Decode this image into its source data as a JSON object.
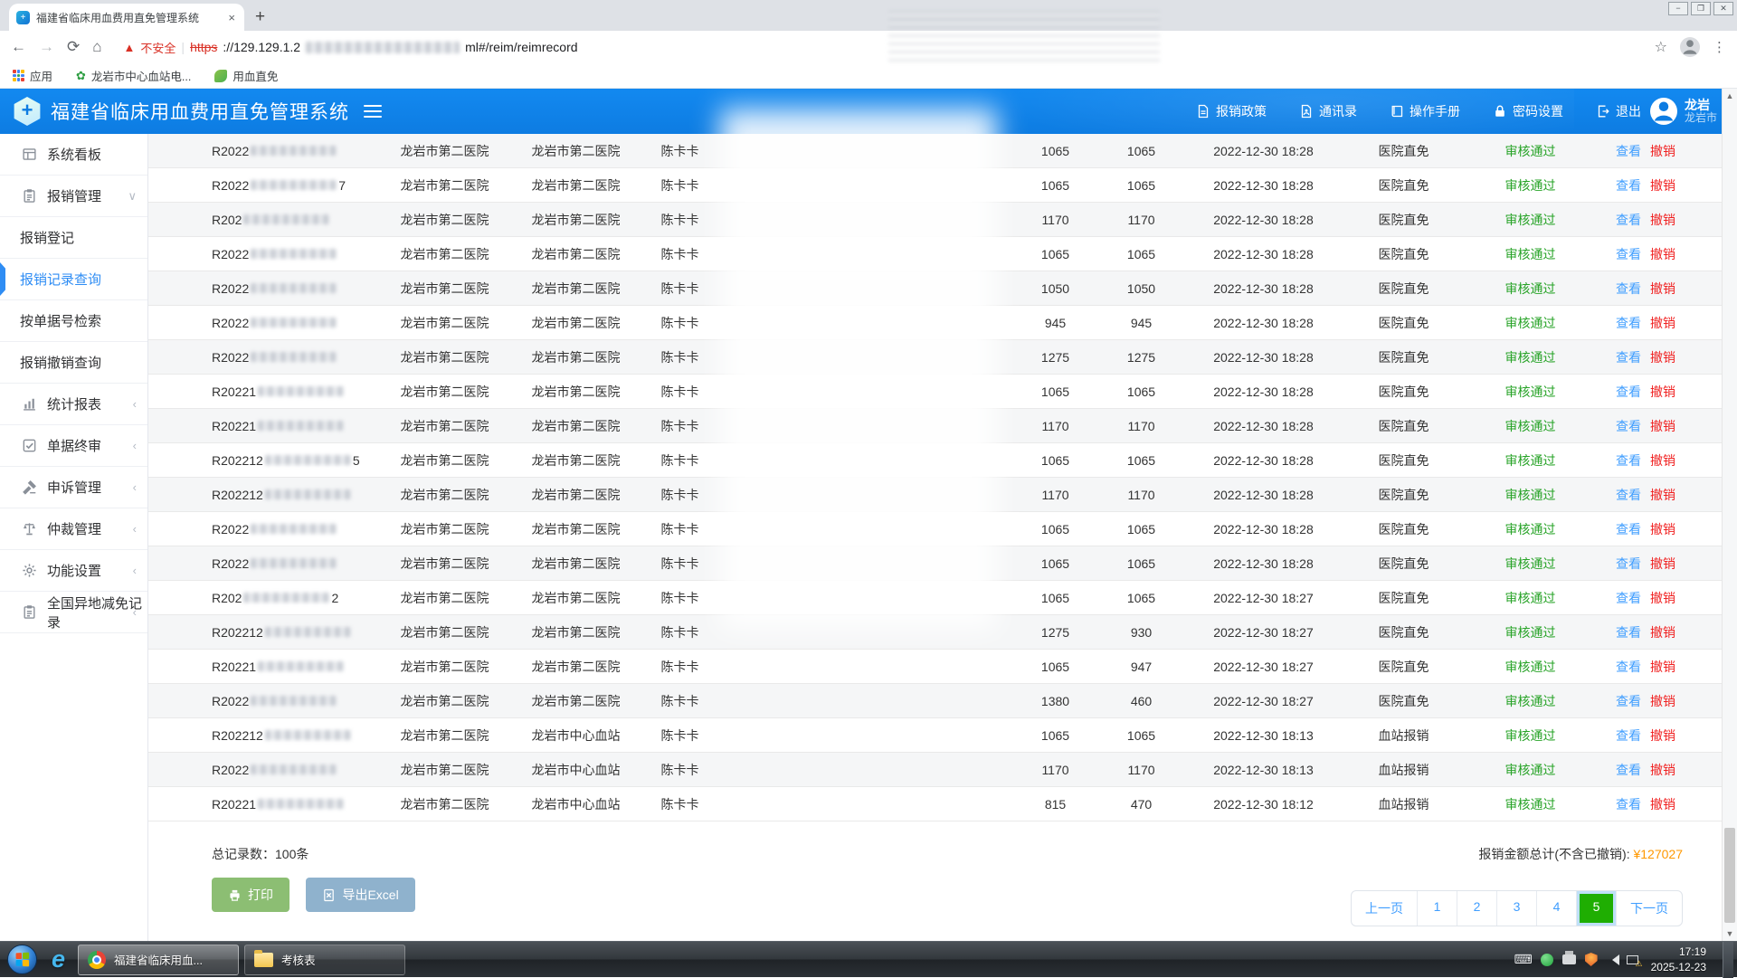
{
  "browser": {
    "tab_title": "福建省临床用血费用直免管理系统",
    "tab_close": "×",
    "new_tab": "+",
    "win_controls": [
      "−",
      "❐",
      "✕"
    ],
    "nav": {
      "back": "←",
      "forward": "→",
      "reload": "⟳",
      "home": "⌂"
    },
    "not_secure": "不安全",
    "url_scheme": "https",
    "url_host": "://129.129.1.2",
    "url_tail": "ml#/reim/reimrecord",
    "bookmarks": [
      {
        "key": "apps",
        "label": "应用"
      },
      {
        "key": "blood-center-site",
        "label": "龙岩市中心血站电..."
      },
      {
        "key": "blood-exempt",
        "label": "用血直免"
      }
    ]
  },
  "header": {
    "title": "福建省临床用血费用直免管理系统",
    "menu": [
      {
        "key": "reimburse-policy",
        "icon": "doc",
        "label": "报销政策"
      },
      {
        "key": "contacts",
        "icon": "contacts",
        "label": "通讯录"
      },
      {
        "key": "manual",
        "icon": "book",
        "label": "操作手册"
      },
      {
        "key": "password-settings",
        "icon": "lock",
        "label": "密码设置"
      },
      {
        "key": "logout",
        "icon": "logout",
        "label": "退出"
      }
    ],
    "user": {
      "name": "龙岩",
      "org": "龙岩市"
    }
  },
  "sidebar": {
    "items": [
      {
        "key": "dashboard",
        "type": "group",
        "icon": "dashboard",
        "label": "系统看板"
      },
      {
        "key": "reimburse-mgmt",
        "type": "group",
        "icon": "clipboard",
        "label": "报销管理",
        "chevron": "down"
      },
      {
        "key": "reimburse-register",
        "type": "sub",
        "label": "报销登记"
      },
      {
        "key": "reimburse-records",
        "type": "sub",
        "label": "报销记录查询",
        "active": true
      },
      {
        "key": "search-by-doc-no",
        "type": "sub",
        "label": "按单据号检索"
      },
      {
        "key": "reimburse-cancel-query",
        "type": "sub",
        "label": "报销撤销查询"
      },
      {
        "key": "stats-report",
        "type": "group",
        "icon": "chart",
        "label": "统计报表",
        "chevron": "left"
      },
      {
        "key": "doc-final-review",
        "type": "group",
        "icon": "checksq",
        "label": "单据终审",
        "chevron": "left"
      },
      {
        "key": "appeal-mgmt",
        "type": "group",
        "icon": "gavel",
        "label": "申诉管理",
        "chevron": "left"
      },
      {
        "key": "arbitration-mgmt",
        "type": "group",
        "icon": "scales",
        "label": "仲裁管理",
        "chevron": "left"
      },
      {
        "key": "function-settings",
        "type": "group",
        "icon": "gear",
        "label": "功能设置",
        "chevron": "left"
      },
      {
        "key": "national-remote-records",
        "type": "group",
        "icon": "clipboard",
        "label": "全国异地减免记录",
        "chevron": "left"
      }
    ]
  },
  "table": {
    "actions": {
      "view": "查看",
      "cancel": "撤销"
    },
    "rows": [
      {
        "id": "R2022",
        "id_suffix": "",
        "hospital": "龙岩市第二医院",
        "receiver": "龙岩市第二医院",
        "name": "陈卡卡",
        "amount1": "1065",
        "amount2": "1065",
        "time": "2022-12-30 18:28",
        "type": "医院直免",
        "status": "审核通过"
      },
      {
        "id": "R2022",
        "id_suffix": "7",
        "hospital": "龙岩市第二医院",
        "receiver": "龙岩市第二医院",
        "name": "陈卡卡",
        "amount1": "1065",
        "amount2": "1065",
        "time": "2022-12-30 18:28",
        "type": "医院直免",
        "status": "审核通过"
      },
      {
        "id": "R202",
        "id_suffix": "",
        "hospital": "龙岩市第二医院",
        "receiver": "龙岩市第二医院",
        "name": "陈卡卡",
        "amount1": "1170",
        "amount2": "1170",
        "time": "2022-12-30 18:28",
        "type": "医院直免",
        "status": "审核通过"
      },
      {
        "id": "R2022",
        "id_suffix": "",
        "hospital": "龙岩市第二医院",
        "receiver": "龙岩市第二医院",
        "name": "陈卡卡",
        "amount1": "1065",
        "amount2": "1065",
        "time": "2022-12-30 18:28",
        "type": "医院直免",
        "status": "审核通过"
      },
      {
        "id": "R2022",
        "id_suffix": "",
        "hospital": "龙岩市第二医院",
        "receiver": "龙岩市第二医院",
        "name": "陈卡卡",
        "amount1": "1050",
        "amount2": "1050",
        "time": "2022-12-30 18:28",
        "type": "医院直免",
        "status": "审核通过"
      },
      {
        "id": "R2022",
        "id_suffix": "",
        "hospital": "龙岩市第二医院",
        "receiver": "龙岩市第二医院",
        "name": "陈卡卡",
        "amount1": "945",
        "amount2": "945",
        "time": "2022-12-30 18:28",
        "type": "医院直免",
        "status": "审核通过"
      },
      {
        "id": "R2022",
        "id_suffix": "",
        "hospital": "龙岩市第二医院",
        "receiver": "龙岩市第二医院",
        "name": "陈卡卡",
        "amount1": "1275",
        "amount2": "1275",
        "time": "2022-12-30 18:28",
        "type": "医院直免",
        "status": "审核通过"
      },
      {
        "id": "R20221",
        "id_suffix": "",
        "hospital": "龙岩市第二医院",
        "receiver": "龙岩市第二医院",
        "name": "陈卡卡",
        "amount1": "1065",
        "amount2": "1065",
        "time": "2022-12-30 18:28",
        "type": "医院直免",
        "status": "审核通过"
      },
      {
        "id": "R20221",
        "id_suffix": "",
        "hospital": "龙岩市第二医院",
        "receiver": "龙岩市第二医院",
        "name": "陈卡卡",
        "amount1": "1170",
        "amount2": "1170",
        "time": "2022-12-30 18:28",
        "type": "医院直免",
        "status": "审核通过"
      },
      {
        "id": "R202212",
        "id_suffix": "5",
        "hospital": "龙岩市第二医院",
        "receiver": "龙岩市第二医院",
        "name": "陈卡卡",
        "amount1": "1065",
        "amount2": "1065",
        "time": "2022-12-30 18:28",
        "type": "医院直免",
        "status": "审核通过"
      },
      {
        "id": "R202212",
        "id_suffix": "",
        "hospital": "龙岩市第二医院",
        "receiver": "龙岩市第二医院",
        "name": "陈卡卡",
        "amount1": "1170",
        "amount2": "1170",
        "time": "2022-12-30 18:28",
        "type": "医院直免",
        "status": "审核通过"
      },
      {
        "id": "R2022",
        "id_suffix": "",
        "hospital": "龙岩市第二医院",
        "receiver": "龙岩市第二医院",
        "name": "陈卡卡",
        "amount1": "1065",
        "amount2": "1065",
        "time": "2022-12-30 18:28",
        "type": "医院直免",
        "status": "审核通过"
      },
      {
        "id": "R2022",
        "id_suffix": "",
        "hospital": "龙岩市第二医院",
        "receiver": "龙岩市第二医院",
        "name": "陈卡卡",
        "amount1": "1065",
        "amount2": "1065",
        "time": "2022-12-30 18:28",
        "type": "医院直免",
        "status": "审核通过"
      },
      {
        "id": "R202",
        "id_suffix": "2",
        "hospital": "龙岩市第二医院",
        "receiver": "龙岩市第二医院",
        "name": "陈卡卡",
        "amount1": "1065",
        "amount2": "1065",
        "time": "2022-12-30 18:27",
        "type": "医院直免",
        "status": "审核通过"
      },
      {
        "id": "R202212",
        "id_suffix": "",
        "hospital": "龙岩市第二医院",
        "receiver": "龙岩市第二医院",
        "name": "陈卡卡",
        "amount1": "1275",
        "amount2": "930",
        "time": "2022-12-30 18:27",
        "type": "医院直免",
        "status": "审核通过"
      },
      {
        "id": "R20221",
        "id_suffix": "",
        "hospital": "龙岩市第二医院",
        "receiver": "龙岩市第二医院",
        "name": "陈卡卡",
        "amount1": "1065",
        "amount2": "947",
        "time": "2022-12-30 18:27",
        "type": "医院直免",
        "status": "审核通过"
      },
      {
        "id": "R2022",
        "id_suffix": "",
        "hospital": "龙岩市第二医院",
        "receiver": "龙岩市第二医院",
        "name": "陈卡卡",
        "amount1": "1380",
        "amount2": "460",
        "time": "2022-12-30 18:27",
        "type": "医院直免",
        "status": "审核通过"
      },
      {
        "id": "R202212",
        "id_suffix": "",
        "hospital": "龙岩市第二医院",
        "receiver": "龙岩市中心血站",
        "name": "陈卡卡",
        "amount1": "1065",
        "amount2": "1065",
        "time": "2022-12-30 18:13",
        "type": "血站报销",
        "status": "审核通过"
      },
      {
        "id": "R2022",
        "id_suffix": "",
        "hospital": "龙岩市第二医院",
        "receiver": "龙岩市中心血站",
        "name": "陈卡卡",
        "amount1": "1170",
        "amount2": "1170",
        "time": "2022-12-30 18:13",
        "type": "血站报销",
        "status": "审核通过"
      },
      {
        "id": "R20221",
        "id_suffix": "",
        "hospital": "龙岩市第二医院",
        "receiver": "龙岩市中心血站",
        "name": "陈卡卡",
        "amount1": "815",
        "amount2": "470",
        "time": "2022-12-30 18:12",
        "type": "血站报销",
        "status": "审核通过"
      }
    ]
  },
  "footer": {
    "total_records": "总记录数：100条",
    "print_label": "打印",
    "export_label": "导出Excel",
    "sum_label": "报销金额总计(不含已撤销):",
    "sum_value": "¥127027"
  },
  "pagination": {
    "prev": "上一页",
    "pages": [
      "1",
      "2",
      "3",
      "4",
      "5"
    ],
    "active": "5",
    "next": "下一页"
  },
  "taskbar": {
    "items": [
      {
        "key": "chrome-window",
        "icon": "chrome",
        "label": "福建省临床用血...",
        "active": true
      },
      {
        "key": "folder-window",
        "icon": "folder",
        "label": "考核表",
        "active": false
      }
    ],
    "tray_time": "17:19",
    "tray_date": "2025-12-23"
  },
  "colors": {
    "header_blue": "#0d7ce2",
    "link_blue": "#409eff",
    "status_green": "#27a327",
    "cancel_red": "#f02121",
    "active_page_green": "#1fae02",
    "sum_orange": "#ff9800"
  }
}
